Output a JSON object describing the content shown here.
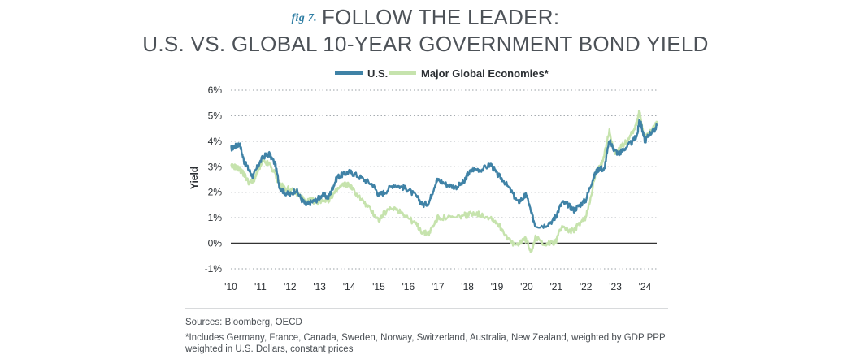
{
  "header": {
    "fig_label": "fig 7.",
    "title_line1": "FOLLOW THE LEADER:",
    "title_line2": "U.S. VS. GLOBAL 10-YEAR GOVERNMENT BOND YIELD"
  },
  "footer": {
    "sources": "Sources: Bloomberg, OECD",
    "footnote": "*Includes Germany, France, Canada, Sweden, Norway, Switzerland, Australia, New Zealand, weighted by GDP PPP weighted in U.S. Dollars, constant prices"
  },
  "colors": {
    "us": "#3f82a6",
    "global": "#c6e3ad",
    "zero_line": "#333333",
    "grid": "#9aa0a6"
  },
  "chart_data": {
    "type": "line",
    "title": "FOLLOW THE LEADER: U.S. VS. GLOBAL 10-YEAR GOVERNMENT BOND YIELD",
    "xlabel": "",
    "ylabel": "Yield",
    "ylim": [
      -1,
      6
    ],
    "xlim": [
      2010,
      2024.4
    ],
    "grid": "horizontal dotted",
    "legend_position": "top-center",
    "yticks": [
      "-1%",
      "0%",
      "1%",
      "2%",
      "3%",
      "4%",
      "5%",
      "6%"
    ],
    "ytick_values": [
      -1,
      0,
      1,
      2,
      3,
      4,
      5,
      6
    ],
    "xticks": [
      "'10",
      "'11",
      "'12",
      "'13",
      "'14",
      "'15",
      "'16",
      "'17",
      "'18",
      "'19",
      "'20",
      "'21",
      "'22",
      "'23",
      "'24"
    ],
    "xtick_values": [
      2010,
      2011,
      2012,
      2013,
      2014,
      2015,
      2016,
      2017,
      2018,
      2019,
      2020,
      2021,
      2022,
      2023,
      2024
    ],
    "series": [
      {
        "name": "U.S.",
        "color": "#3f82a6",
        "x": [
          2010.0,
          2010.15,
          2010.3,
          2010.45,
          2010.6,
          2010.75,
          2010.9,
          2011.1,
          2011.3,
          2011.5,
          2011.65,
          2011.8,
          2012.0,
          2012.2,
          2012.4,
          2012.55,
          2012.7,
          2012.9,
          2013.1,
          2013.3,
          2013.45,
          2013.6,
          2013.8,
          2014.0,
          2014.2,
          2014.5,
          2014.8,
          2015.0,
          2015.2,
          2015.5,
          2015.8,
          2016.0,
          2016.3,
          2016.5,
          2016.7,
          2016.9,
          2017.0,
          2017.3,
          2017.6,
          2017.9,
          2018.0,
          2018.2,
          2018.5,
          2018.8,
          2019.0,
          2019.2,
          2019.5,
          2019.7,
          2019.9,
          2020.0,
          2020.15,
          2020.3,
          2020.6,
          2020.9,
          2021.0,
          2021.2,
          2021.4,
          2021.6,
          2021.8,
          2022.0,
          2022.2,
          2022.35,
          2022.5,
          2022.6,
          2022.8,
          2022.95,
          2023.1,
          2023.2,
          2023.4,
          2023.6,
          2023.75,
          2023.82,
          2023.9,
          2024.0,
          2024.15,
          2024.3,
          2024.4
        ],
        "y": [
          3.7,
          3.8,
          3.9,
          3.2,
          2.9,
          2.6,
          3.0,
          3.4,
          3.5,
          3.1,
          2.2,
          2.0,
          1.9,
          2.1,
          1.7,
          1.5,
          1.6,
          1.7,
          1.9,
          1.8,
          2.2,
          2.6,
          2.7,
          2.8,
          2.7,
          2.5,
          2.3,
          1.9,
          2.0,
          2.3,
          2.2,
          2.1,
          1.8,
          1.5,
          1.6,
          2.3,
          2.5,
          2.3,
          2.2,
          2.4,
          2.7,
          2.9,
          2.9,
          3.1,
          2.7,
          2.5,
          2.0,
          1.6,
          1.8,
          1.9,
          1.2,
          0.7,
          0.7,
          0.9,
          1.1,
          1.6,
          1.5,
          1.3,
          1.5,
          1.7,
          2.4,
          2.8,
          3.0,
          2.8,
          4.0,
          3.7,
          3.5,
          3.6,
          3.8,
          4.0,
          4.3,
          4.9,
          4.5,
          4.0,
          4.3,
          4.4,
          4.6
        ]
      },
      {
        "name": "Major Global Economies*",
        "color": "#c6e3ad",
        "x": [
          2010.0,
          2010.15,
          2010.3,
          2010.45,
          2010.6,
          2010.75,
          2010.9,
          2011.1,
          2011.3,
          2011.5,
          2011.65,
          2011.8,
          2012.0,
          2012.2,
          2012.4,
          2012.55,
          2012.7,
          2012.9,
          2013.1,
          2013.3,
          2013.45,
          2013.6,
          2013.8,
          2014.0,
          2014.2,
          2014.5,
          2014.8,
          2015.0,
          2015.2,
          2015.5,
          2015.8,
          2016.0,
          2016.3,
          2016.5,
          2016.7,
          2016.9,
          2017.0,
          2017.3,
          2017.6,
          2017.9,
          2018.0,
          2018.2,
          2018.5,
          2018.8,
          2019.0,
          2019.2,
          2019.5,
          2019.7,
          2019.9,
          2020.0,
          2020.15,
          2020.3,
          2020.6,
          2020.9,
          2021.0,
          2021.2,
          2021.4,
          2021.6,
          2021.8,
          2022.0,
          2022.2,
          2022.35,
          2022.5,
          2022.6,
          2022.8,
          2022.95,
          2023.1,
          2023.2,
          2023.4,
          2023.6,
          2023.75,
          2023.82,
          2023.9,
          2024.0,
          2024.15,
          2024.3,
          2024.4
        ],
        "y": [
          3.0,
          3.0,
          2.9,
          2.7,
          2.4,
          2.4,
          2.8,
          3.2,
          3.1,
          2.7,
          2.3,
          2.2,
          2.1,
          2.0,
          1.8,
          1.6,
          1.7,
          1.6,
          1.7,
          1.7,
          1.9,
          2.1,
          2.3,
          2.3,
          2.0,
          1.6,
          1.2,
          0.9,
          1.2,
          1.4,
          1.2,
          1.0,
          0.7,
          0.4,
          0.4,
          0.8,
          1.0,
          1.0,
          1.0,
          1.1,
          1.1,
          1.2,
          1.1,
          1.0,
          0.8,
          0.5,
          0.0,
          -0.1,
          0.2,
          0.1,
          -0.3,
          0.2,
          0.0,
          0.0,
          0.1,
          0.7,
          0.5,
          0.5,
          0.8,
          1.0,
          2.0,
          2.8,
          3.0,
          3.4,
          4.4,
          3.6,
          3.6,
          3.8,
          4.0,
          4.4,
          4.8,
          5.2,
          4.6,
          4.1,
          4.3,
          4.5,
          4.8
        ]
      }
    ]
  }
}
